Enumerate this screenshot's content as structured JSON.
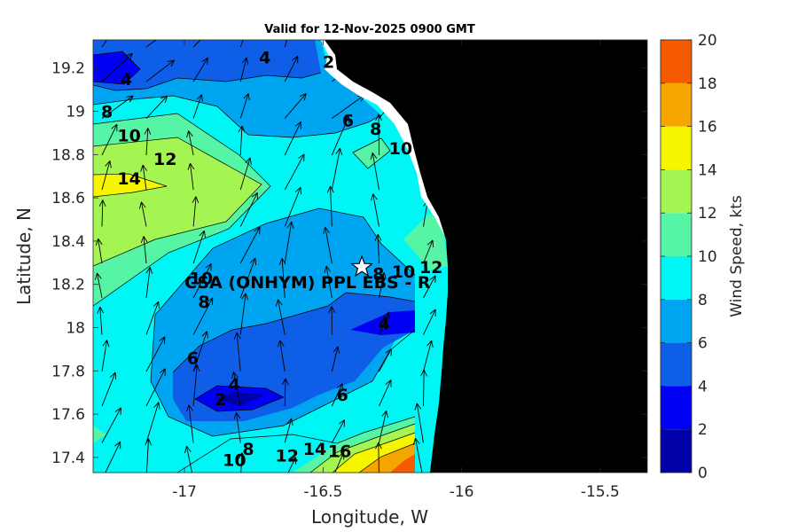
{
  "title": "Valid for 12-Nov-2025 0900 GMT",
  "xlabel": "Longitude, W",
  "ylabel": "Latitude, N",
  "colorbar_label": "Wind Speed, kts",
  "site_label": "CSA (ONHYM) PPL EBS - R",
  "chart_data": {
    "type": "heatmap",
    "title": "Valid for 12-Nov-2025 0900 GMT",
    "xlabel": "Longitude, W",
    "ylabel": "Latitude, N",
    "xlim": [
      -17.33,
      -15.33
    ],
    "ylim": [
      17.33,
      19.33
    ],
    "xticks": [
      "-17",
      "-16.5",
      "-16",
      "-15.5"
    ],
    "xtick_values": [
      -17,
      -16.5,
      -16,
      -15.5
    ],
    "yticks": [
      "17.4",
      "17.6",
      "17.8",
      "18",
      "18.2",
      "18.4",
      "18.6",
      "18.8",
      "19",
      "19.2"
    ],
    "ytick_values": [
      17.4,
      17.6,
      17.8,
      18,
      18.2,
      18.4,
      18.6,
      18.8,
      19,
      19.2
    ],
    "colorbar": {
      "label": "Wind Speed, kts",
      "range": [
        0,
        20
      ],
      "ticks": [
        "0",
        "2",
        "4",
        "6",
        "8",
        "10",
        "12",
        "14",
        "16",
        "18",
        "20"
      ],
      "levels": [
        {
          "min": 0,
          "max": 2,
          "color": "#0000a8"
        },
        {
          "min": 2,
          "max": 4,
          "color": "#0000f5"
        },
        {
          "min": 4,
          "max": 6,
          "color": "#0f5ee8"
        },
        {
          "min": 6,
          "max": 8,
          "color": "#00a5f2"
        },
        {
          "min": 8,
          "max": 10,
          "color": "#00f5f5"
        },
        {
          "min": 10,
          "max": 12,
          "color": "#55f5a5"
        },
        {
          "min": 12,
          "max": 14,
          "color": "#a5f552"
        },
        {
          "min": 14,
          "max": 16,
          "color": "#f5f500"
        },
        {
          "min": 16,
          "max": 18,
          "color": "#f5a500"
        },
        {
          "min": 18,
          "max": 20,
          "color": "#f55a00"
        }
      ]
    },
    "contour_labels": [
      {
        "text": "4",
        "lon": -16.71,
        "lat": 19.25
      },
      {
        "text": "2",
        "lon": -16.48,
        "lat": 19.23
      },
      {
        "text": "4",
        "lon": -17.21,
        "lat": 19.15
      },
      {
        "text": "8",
        "lon": -17.28,
        "lat": 19.0
      },
      {
        "text": "10",
        "lon": -17.2,
        "lat": 18.89
      },
      {
        "text": "6",
        "lon": -16.41,
        "lat": 18.96
      },
      {
        "text": "8",
        "lon": -16.31,
        "lat": 18.92
      },
      {
        "text": "10",
        "lon": -16.22,
        "lat": 18.83
      },
      {
        "text": "12",
        "lon": -17.07,
        "lat": 18.78
      },
      {
        "text": "14",
        "lon": -17.2,
        "lat": 18.69
      },
      {
        "text": "10",
        "lon": -16.94,
        "lat": 18.23
      },
      {
        "text": "8",
        "lon": -16.93,
        "lat": 18.12
      },
      {
        "text": "8",
        "lon": -16.3,
        "lat": 18.25
      },
      {
        "text": "10",
        "lon": -16.21,
        "lat": 18.26
      },
      {
        "text": "12",
        "lon": -16.11,
        "lat": 18.28
      },
      {
        "text": "4",
        "lon": -16.28,
        "lat": 18.02
      },
      {
        "text": "6",
        "lon": -16.97,
        "lat": 17.86
      },
      {
        "text": "4",
        "lon": -16.82,
        "lat": 17.74
      },
      {
        "text": "2",
        "lon": -16.87,
        "lat": 17.67
      },
      {
        "text": "6",
        "lon": -16.43,
        "lat": 17.69
      },
      {
        "text": "8",
        "lon": -16.77,
        "lat": 17.44
      },
      {
        "text": "10",
        "lon": -16.82,
        "lat": 17.39
      },
      {
        "text": "12",
        "lon": -16.63,
        "lat": 17.41
      },
      {
        "text": "14",
        "lon": -16.53,
        "lat": 17.44
      },
      {
        "text": "16",
        "lon": -16.44,
        "lat": 17.43
      }
    ],
    "site": {
      "lon": -16.36,
      "lat": 18.28,
      "label": "CSA (ONHYM) PPL EBS - R"
    },
    "wind_grid": {
      "lons": [
        -17.33,
        -17.17,
        -17.0,
        -16.83,
        -16.67,
        -16.5,
        -16.33,
        -16.17
      ],
      "lats": [
        19.33,
        19.17,
        19.0,
        18.83,
        18.67,
        18.5,
        18.33,
        18.17,
        18.0,
        17.83,
        17.67,
        17.5,
        17.33
      ]
    }
  }
}
